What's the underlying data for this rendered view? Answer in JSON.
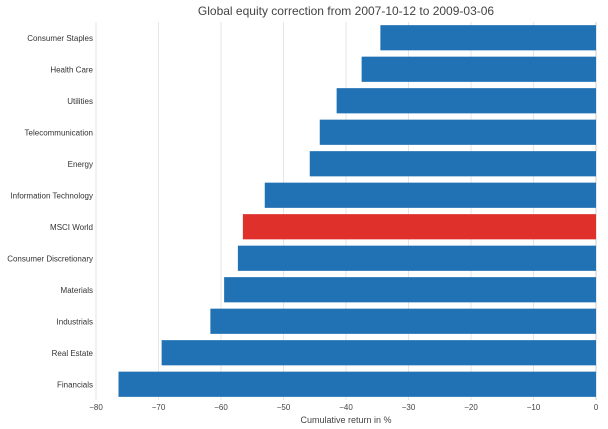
{
  "chart_data": {
    "type": "bar",
    "orientation": "horizontal",
    "title": "Global equity correction from 2007-10-12 to 2009-03-06",
    "xlabel": "Cumulative return in %",
    "ylabel": "",
    "xlim": [
      -80,
      0
    ],
    "xticks": [
      -80,
      -70,
      -60,
      -50,
      -40,
      -30,
      -20,
      -10,
      0
    ],
    "xtick_labels": [
      "−80",
      "−70",
      "−60",
      "−50",
      "−40",
      "−30",
      "−20",
      "−10",
      "0"
    ],
    "grid": true,
    "categories": [
      "Consumer Staples",
      "Health Care",
      "Utilities",
      "Telecommunication",
      "Energy",
      "Information Technology",
      "MSCI World",
      "Consumer Discretionary",
      "Materials",
      "Industrials",
      "Real Estate",
      "Financials"
    ],
    "values": [
      -34.5,
      -37.5,
      -41.5,
      -44.2,
      -45.8,
      -53,
      -56.5,
      -57.3,
      -59.5,
      -61.7,
      -69.5,
      -76.4
    ],
    "colors": {
      "default": "#2171b5",
      "highlight": "#e0302b"
    },
    "highlight_category": "MSCI World"
  }
}
